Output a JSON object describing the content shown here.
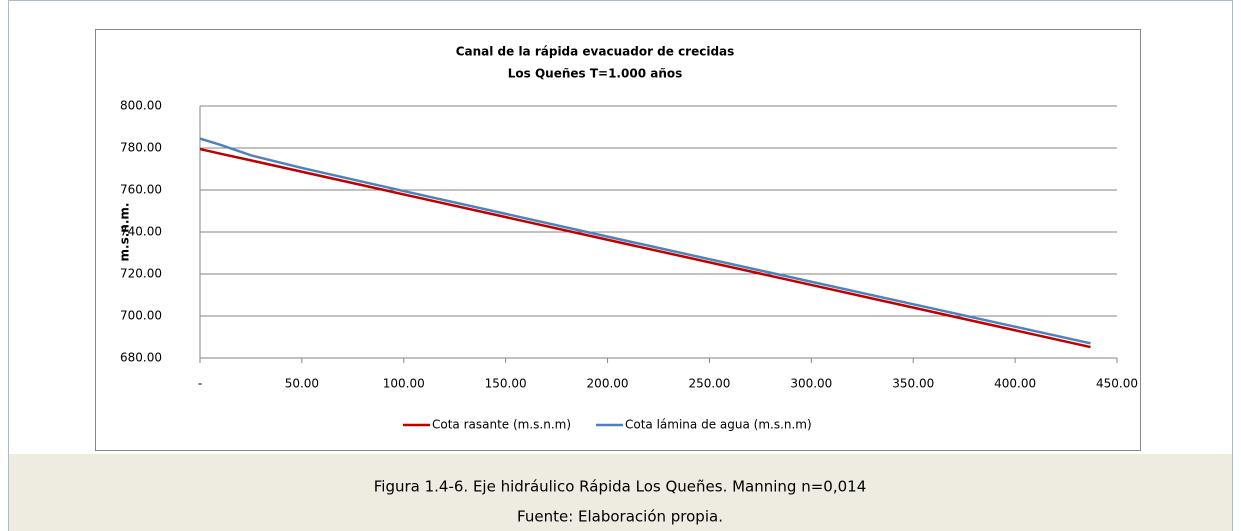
{
  "chart_data": {
    "type": "line",
    "title": [
      "Canal de la rápida  evacuador de crecidas",
      "Los Queñes T=1.000 años"
    ],
    "ylabel": "m.s.n.m.",
    "x": [
      0,
      10,
      25,
      50,
      100,
      200,
      300,
      437
    ],
    "series": [
      {
        "name": "Cota rasante (m.s.n.m)",
        "color": "#c00000",
        "values": [
          779.5,
          777.3,
          774.1,
          768.7,
          757.9,
          736.3,
          714.8,
          685.2
        ]
      },
      {
        "name": "Cota lámina de agua (m.s.n.m)",
        "color": "#4f81bd",
        "values": [
          784.5,
          781.5,
          776.5,
          770.5,
          759.5,
          737.8,
          716.3,
          687.0
        ]
      }
    ],
    "xlim": [
      0,
      450
    ],
    "xticks": [
      {
        "value": 0,
        "label": "-"
      },
      {
        "value": 50,
        "label": "50.00"
      },
      {
        "value": 100,
        "label": "100.00"
      },
      {
        "value": 150,
        "label": "150.00"
      },
      {
        "value": 200,
        "label": "200.00"
      },
      {
        "value": 250,
        "label": "250.00"
      },
      {
        "value": 300,
        "label": "300.00"
      },
      {
        "value": 350,
        "label": "350.00"
      },
      {
        "value": 400,
        "label": "400.00"
      },
      {
        "value": 450,
        "label": "450.00"
      }
    ],
    "ylim": [
      680,
      800
    ],
    "yticks": [
      {
        "value": 680,
        "label": "680.00"
      },
      {
        "value": 700,
        "label": "700.00"
      },
      {
        "value": 720,
        "label": "720.00"
      },
      {
        "value": 740,
        "label": "740.00"
      },
      {
        "value": 760,
        "label": "760.00"
      },
      {
        "value": 780,
        "label": "780.00"
      },
      {
        "value": 800,
        "label": "800.00"
      }
    ],
    "grid": true,
    "legend": "bottom"
  },
  "caption": [
    "Figura 1.4-6. Eje hidráulico Rápida Los Queñes. Manning n=0,014",
    "Fuente: Elaboración propia."
  ]
}
